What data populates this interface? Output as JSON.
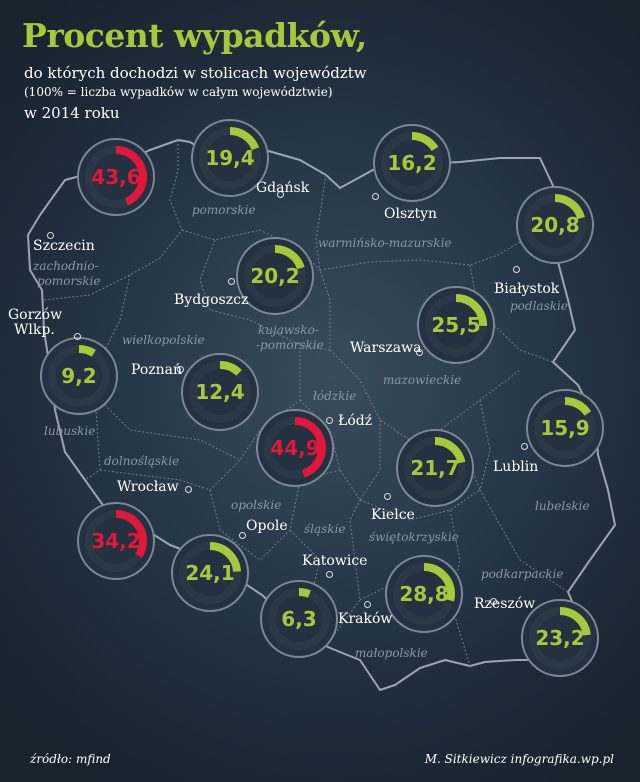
{
  "header": {
    "title": "Procent wypadków,",
    "line1": "do których dochodzi w stolicach województw",
    "line2": "(100% = liczba wypadków w całym województwie)",
    "line3": "w 2014 roku"
  },
  "footer": {
    "source": "źródło: mfind",
    "credit": "M. Sitkiewicz infografika.wp.pl"
  },
  "colors": {
    "accent": "#a4c93a",
    "highlight": "#e0173a",
    "ring_bg": "#2b3946",
    "ring_border": "#7a8794"
  },
  "rings": [
    {
      "city": "Szczecin",
      "label": "43,6",
      "value": 43.6
    },
    {
      "city": "Gdańsk",
      "label": "19,4",
      "value": 19.4
    },
    {
      "city": "Olsztyn",
      "label": "16,2",
      "value": 16.2
    },
    {
      "city": "Białystok",
      "label": "20,8",
      "value": 20.8
    },
    {
      "city": "Bydgoszcz",
      "label": "20,2",
      "value": 20.2
    },
    {
      "city": "Warszawa",
      "label": "25,5",
      "value": 25.5
    },
    {
      "city": "Gorzów Wlkp.",
      "label": "9,2",
      "value": 9.2
    },
    {
      "city": "Poznań",
      "label": "12,4",
      "value": 12.4
    },
    {
      "city": "Łódź",
      "label": "44,9",
      "value": 44.9
    },
    {
      "city": "Lublin",
      "label": "15,9",
      "value": 15.9
    },
    {
      "city": "Kielce",
      "label": "21,7",
      "value": 21.7
    },
    {
      "city": "Wrocław",
      "label": "34,2",
      "value": 34.2
    },
    {
      "city": "Opole",
      "label": "24,1",
      "value": 24.1
    },
    {
      "city": "Katowice",
      "label": "6,3",
      "value": 6.3
    },
    {
      "city": "Kraków",
      "label": "28,8",
      "value": 28.8
    },
    {
      "city": "Rzeszów",
      "label": "23,2",
      "value": 23.2
    }
  ],
  "cities": {
    "gdansk": "Gdańsk",
    "olsztyn": "Olsztyn",
    "szczecin": "Szczecin",
    "bialystok": "Białystok",
    "bydgoszcz": "Bydgoszcz",
    "gorzow_1": "Gorzów",
    "gorzow_2": "Wlkp.",
    "warszawa": "Warszawa",
    "poznan": "Poznań",
    "lodz": "Łódź",
    "lublin": "Lublin",
    "wroclaw": "Wrocław",
    "kielce": "Kielce",
    "opole": "Opole",
    "katowice": "Katowice",
    "rzeszow": "Rzeszów",
    "krakow": "Kraków"
  },
  "regions": {
    "pomorskie": "pomorskie",
    "warminsko": "warmińsko-mazurskie",
    "zachodnio_1": "zachodnio-",
    "zachodnio_2": "pomorskie",
    "podlaskie": "podlaskie",
    "kujawsko_1": "kujawsko-",
    "kujawsko_2": "-pomorskie",
    "wielkopolskie": "wielkopolskie",
    "mazowieckie": "mazowieckie",
    "lodzkie": "łódzkie",
    "lubuskie": "lubuskie",
    "dolnoslaskie": "dolnośląskie",
    "lubelskie": "lubelskie",
    "opolskie": "opolskie",
    "swietokrzyskie": "świętokrzyskie",
    "slaskie": "śląskie",
    "podkarpackie": "podkarpackie",
    "malopolskie": "małopolskie"
  }
}
